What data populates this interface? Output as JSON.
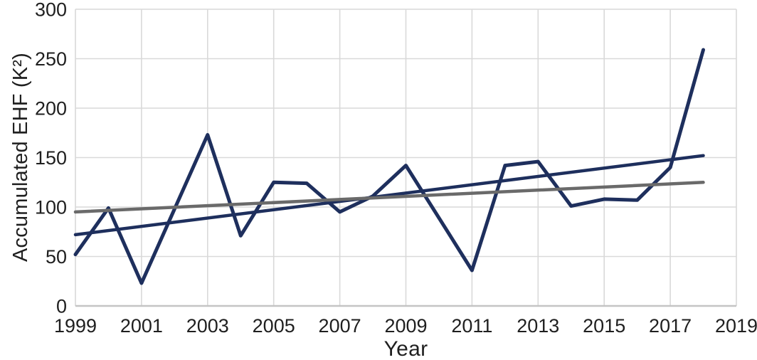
{
  "chart_data": {
    "type": "line",
    "title": "",
    "xlabel": "Year",
    "ylabel": "Accumulated EHF (K²)",
    "xlim": [
      1999,
      2019
    ],
    "ylim": [
      0,
      300
    ],
    "xticks": [
      1999,
      2001,
      2003,
      2005,
      2007,
      2009,
      2011,
      2013,
      2015,
      2017,
      2019
    ],
    "yticks": [
      0,
      50,
      100,
      150,
      200,
      250,
      300
    ],
    "grid": true,
    "legend": "none",
    "x": [
      1999,
      2000,
      2001,
      2002,
      2003,
      2004,
      2005,
      2006,
      2007,
      2008,
      2009,
      2010,
      2011,
      2012,
      2013,
      2014,
      2015,
      2016,
      2017,
      2018
    ],
    "series": [
      {
        "id": "accumulated-ehf",
        "role": "data",
        "color": "#1e2f5d",
        "width": 5,
        "values": [
          52,
          99,
          23,
          98,
          173,
          71,
          125,
          124,
          95,
          111,
          142,
          89,
          36,
          142,
          146,
          101,
          108,
          107,
          140,
          259
        ]
      },
      {
        "id": "trend-navy",
        "role": "trend",
        "color": "#1e2f5d",
        "width": 4.5,
        "x": [
          1999,
          2018
        ],
        "values": [
          72,
          152
        ]
      },
      {
        "id": "trend-gray",
        "role": "trend",
        "color": "#6a6a6a",
        "width": 4.5,
        "x": [
          1999,
          2018
        ],
        "values": [
          95,
          125
        ]
      }
    ],
    "colors": {
      "gridline": "#d9d9d9",
      "axis_line": "#c4c4c4",
      "tick_text": "#1f1f1f"
    }
  }
}
